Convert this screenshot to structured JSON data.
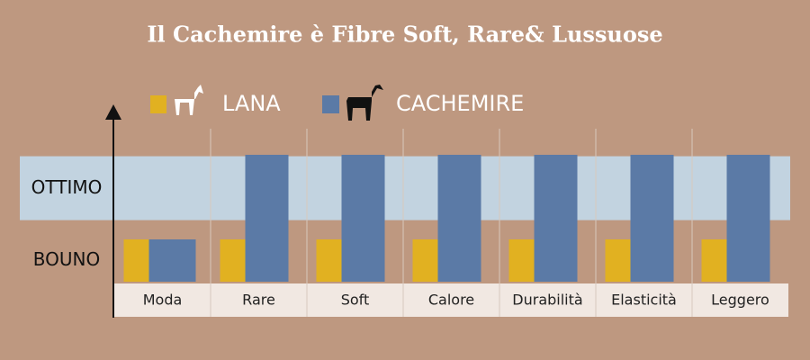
{
  "chart_data": {
    "type": "bar",
    "title": "Il Cachemire è Fibre Soft, Rare& Lussuose",
    "categories": [
      "Moda",
      "Rare",
      "Soft",
      "Calore",
      "Durabilità",
      "Elasticità",
      "Leggero"
    ],
    "series": [
      {
        "name": "LANA",
        "color": "#e1b121",
        "values": [
          1,
          1,
          1,
          1,
          1,
          1,
          1
        ]
      },
      {
        "name": "CACHEMIRE",
        "color": "#5b7aa6",
        "values": [
          1,
          3,
          3,
          3,
          3,
          3,
          3
        ]
      }
    ],
    "ylim": [
      0,
      3
    ],
    "yticks": [
      {
        "value": 0.5,
        "label": "BOUNO"
      },
      {
        "value": 2.2,
        "label": "OTTIMO"
      }
    ]
  }
}
